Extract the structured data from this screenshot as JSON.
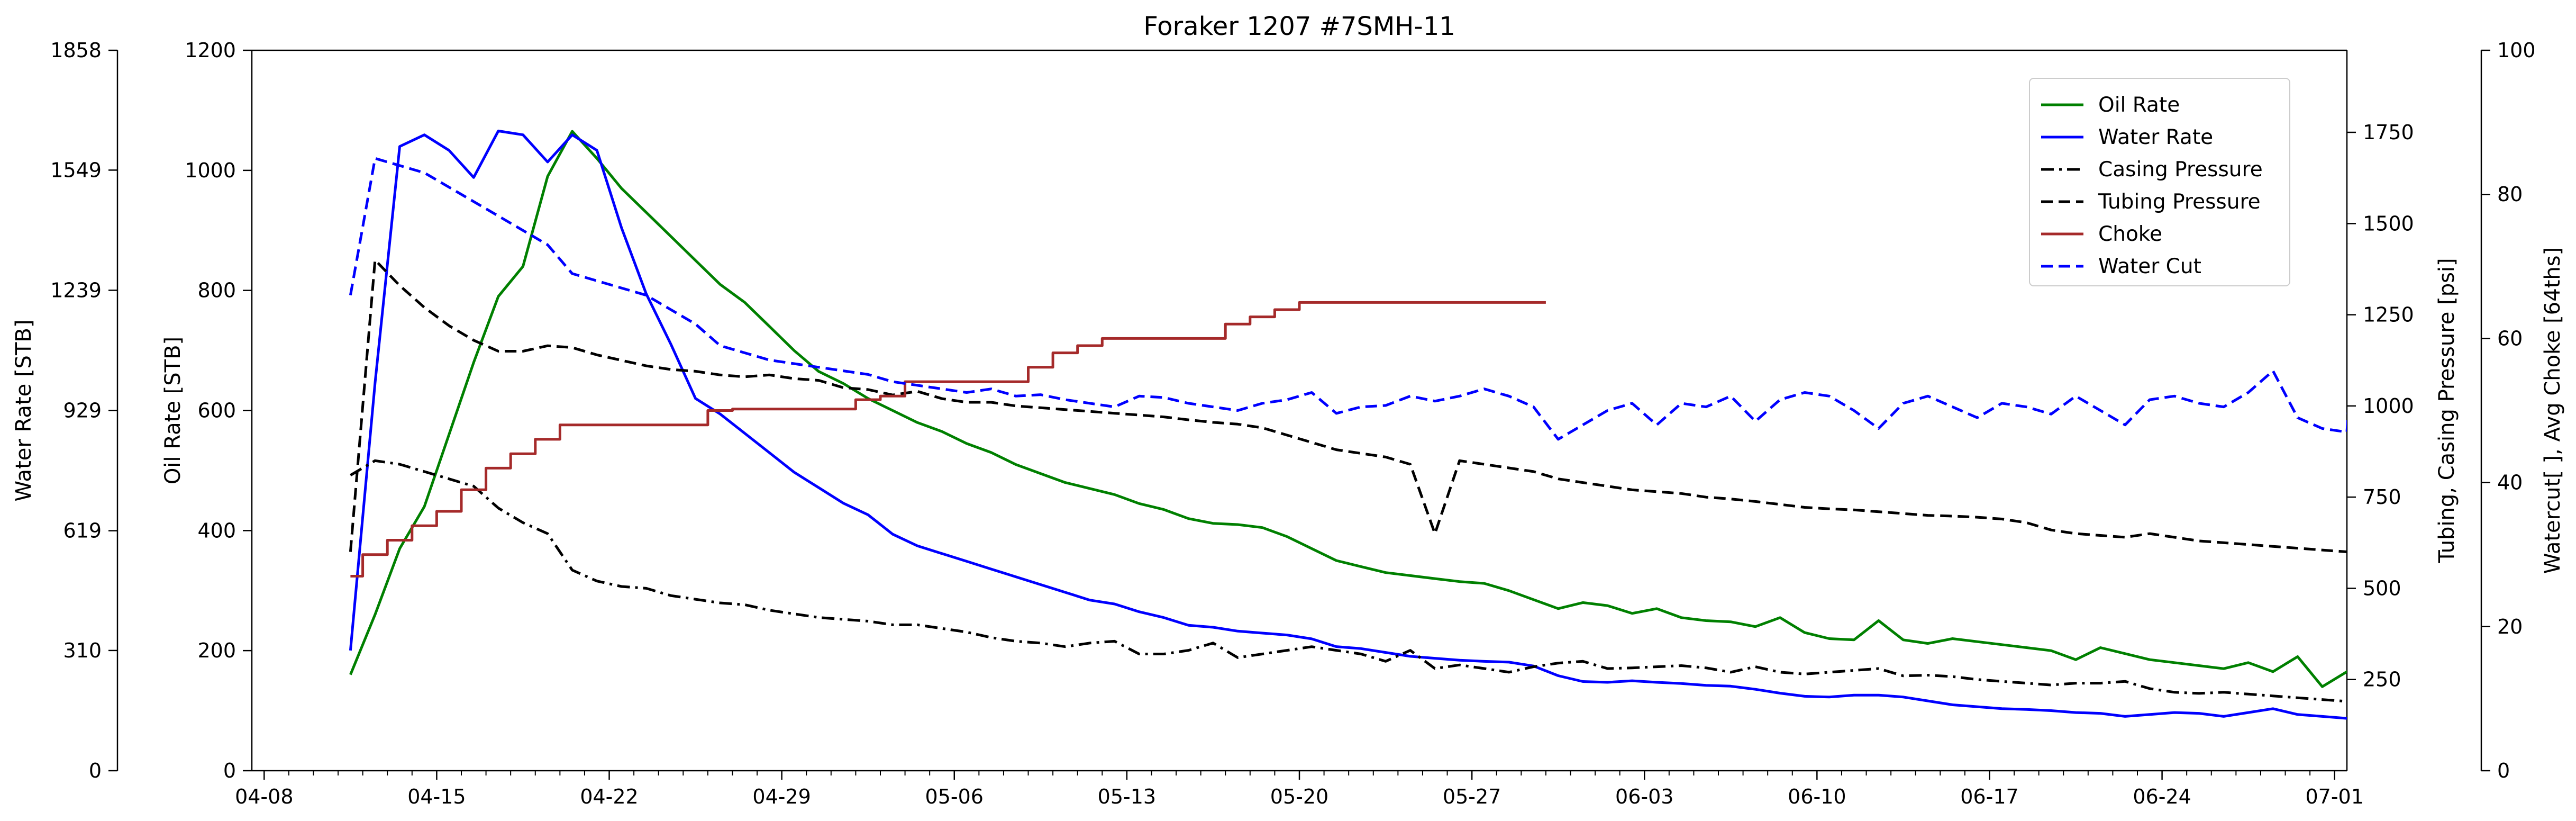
{
  "chart_data": {
    "type": "line",
    "title": "Foraker 1207 #7SMH-11",
    "x_tick_labels": [
      "04-08",
      "04-15",
      "04-22",
      "04-29",
      "05-06",
      "05-13",
      "05-20",
      "05-27",
      "06-03",
      "06-10",
      "06-17",
      "06-24",
      "07-01"
    ],
    "x_range_days": [
      -0.5,
      84.5
    ],
    "axes": {
      "oil": {
        "label": "Oil Rate [STB]",
        "ylim": [
          0,
          1200
        ],
        "ticks": [
          "0",
          "200",
          "400",
          "600",
          "800",
          "1000",
          "1200"
        ]
      },
      "water": {
        "label": "Water Rate [STB]",
        "ylim": [
          0,
          1858
        ],
        "ticks": [
          "0",
          "310",
          "619",
          "929",
          "1239",
          "1549",
          "1858"
        ]
      },
      "pressure": {
        "label": "Tubing, Casing Pressure [psi]",
        "ylim": [
          0,
          1975
        ],
        "ticks": [
          "250",
          "500",
          "750",
          "1000",
          "1250",
          "1500",
          "1750"
        ]
      },
      "percent": {
        "label": "Watercut[ ], Avg Choke [64ths]",
        "ylim": [
          0,
          100
        ],
        "ticks": [
          "0",
          "20",
          "40",
          "60",
          "80",
          "100"
        ]
      }
    },
    "legend_position": "top-right",
    "series": [
      {
        "name": "Oil Rate",
        "axis": "oil",
        "color": "#008000",
        "dash": "solid",
        "start_day": 3.5,
        "values": [
          160,
          260,
          370,
          440,
          560,
          680,
          790,
          840,
          990,
          1065,
          1020,
          970,
          930,
          890,
          850,
          810,
          780,
          740,
          700,
          665,
          645,
          620,
          600,
          580,
          565,
          545,
          530,
          510,
          495,
          480,
          470,
          460,
          445,
          435,
          420,
          412,
          410,
          405,
          390,
          370,
          350,
          340,
          330,
          325,
          320,
          315,
          312,
          300,
          285,
          270,
          280,
          275,
          262,
          270,
          255,
          250,
          248,
          240,
          255,
          230,
          220,
          218,
          250,
          218,
          212,
          220,
          215,
          210,
          205,
          200,
          185,
          205,
          195,
          185,
          180,
          175,
          170,
          180,
          165,
          190,
          140,
          165,
          165,
          160,
          0
        ]
      },
      {
        "name": "Water Rate",
        "axis": "water",
        "color": "#0000ff",
        "dash": "solid",
        "start_day": 3.5,
        "values": [
          310,
          1000,
          1610,
          1640,
          1600,
          1530,
          1650,
          1640,
          1570,
          1640,
          1600,
          1400,
          1230,
          1100,
          960,
          920,
          870,
          820,
          770,
          730,
          690,
          660,
          610,
          580,
          560,
          540,
          520,
          500,
          480,
          460,
          440,
          430,
          410,
          395,
          375,
          370,
          360,
          355,
          350,
          340,
          320,
          315,
          305,
          295,
          290,
          285,
          282,
          280,
          270,
          245,
          230,
          228,
          232,
          228,
          225,
          220,
          218,
          210,
          200,
          192,
          190,
          195,
          195,
          190,
          180,
          170,
          165,
          160,
          158,
          155,
          150,
          148,
          140,
          145,
          150,
          148,
          140,
          150,
          160,
          145,
          140,
          135,
          128,
          125,
          110
        ]
      },
      {
        "name": "Casing Pressure",
        "axis": "pressure",
        "color": "#000000",
        "dash": "dashdot",
        "start_day": 3.5,
        "values": [
          810,
          850,
          840,
          820,
          800,
          780,
          720,
          680,
          650,
          550,
          520,
          505,
          500,
          480,
          470,
          460,
          455,
          440,
          430,
          420,
          415,
          410,
          400,
          400,
          390,
          380,
          365,
          355,
          350,
          340,
          350,
          355,
          320,
          320,
          330,
          350,
          310,
          320,
          330,
          340,
          330,
          320,
          300,
          330,
          280,
          290,
          280,
          270,
          285,
          295,
          300,
          280,
          282,
          285,
          288,
          282,
          270,
          285,
          270,
          265,
          270,
          275,
          280,
          260,
          262,
          258,
          250,
          245,
          240,
          235,
          240,
          240,
          245,
          225,
          215,
          212,
          215,
          210,
          205,
          200,
          195,
          190,
          185,
          180,
          175
        ]
      },
      {
        "name": "Tubing Pressure",
        "axis": "pressure",
        "color": "#000000",
        "dash": "dashed",
        "start_day": 3.5,
        "values": [
          600,
          1400,
          1330,
          1270,
          1220,
          1180,
          1150,
          1150,
          1165,
          1160,
          1140,
          1125,
          1110,
          1100,
          1095,
          1085,
          1080,
          1085,
          1075,
          1070,
          1050,
          1045,
          1030,
          1040,
          1020,
          1010,
          1010,
          1000,
          995,
          990,
          985,
          980,
          975,
          970,
          962,
          955,
          950,
          940,
          920,
          900,
          880,
          870,
          860,
          840,
          650,
          850,
          840,
          830,
          820,
          800,
          790,
          780,
          770,
          765,
          760,
          750,
          745,
          738,
          730,
          722,
          718,
          715,
          710,
          705,
          700,
          698,
          695,
          690,
          680,
          660,
          650,
          645,
          640,
          650,
          640,
          630,
          625,
          620,
          615,
          610,
          605,
          600,
          595,
          590,
          580
        ]
      },
      {
        "name": "Choke",
        "axis": "percent",
        "color": "#a52a2a",
        "dash": "solid",
        "step": true,
        "points": [
          [
            3.5,
            27
          ],
          [
            4,
            30
          ],
          [
            5,
            32
          ],
          [
            6,
            34
          ],
          [
            7,
            36
          ],
          [
            8,
            39
          ],
          [
            9,
            42
          ],
          [
            10,
            44
          ],
          [
            11,
            46
          ],
          [
            12,
            48
          ],
          [
            18,
            50
          ],
          [
            19,
            50.2
          ],
          [
            24,
            51.5
          ],
          [
            25,
            52
          ],
          [
            26,
            54
          ],
          [
            27,
            54
          ],
          [
            31,
            56
          ],
          [
            32,
            58
          ],
          [
            33,
            59
          ],
          [
            34,
            60
          ],
          [
            39,
            62
          ],
          [
            40,
            63
          ],
          [
            41,
            64
          ],
          [
            42,
            65
          ],
          [
            43,
            65
          ],
          [
            52,
            65
          ]
        ]
      },
      {
        "name": "Water Cut",
        "axis": "percent",
        "color": "#0000ff",
        "dash": "dashed",
        "start_day": 3.5,
        "values": [
          66,
          85,
          84,
          83,
          81,
          79,
          77,
          75,
          73,
          69,
          68,
          67,
          66,
          64,
          62,
          59,
          58,
          57,
          56.5,
          56,
          55.5,
          55,
          54,
          53.5,
          53,
          52.5,
          53,
          52,
          52.2,
          51.5,
          51,
          50.5,
          52,
          51.8,
          51,
          50.5,
          50,
          51,
          51.5,
          52.5,
          49.6,
          50.5,
          50.7,
          52,
          51.3,
          52,
          53,
          52,
          50.5,
          46,
          48,
          50,
          51,
          48,
          51,
          50.5,
          52,
          48.5,
          51.5,
          52.5,
          52,
          50,
          47.5,
          51,
          52,
          50.5,
          49,
          51,
          50.5,
          49.5,
          52,
          50,
          48,
          51.5,
          52,
          51,
          50.5,
          52.5,
          55.5,
          49,
          47.5,
          47,
          100
        ]
      }
    ]
  }
}
